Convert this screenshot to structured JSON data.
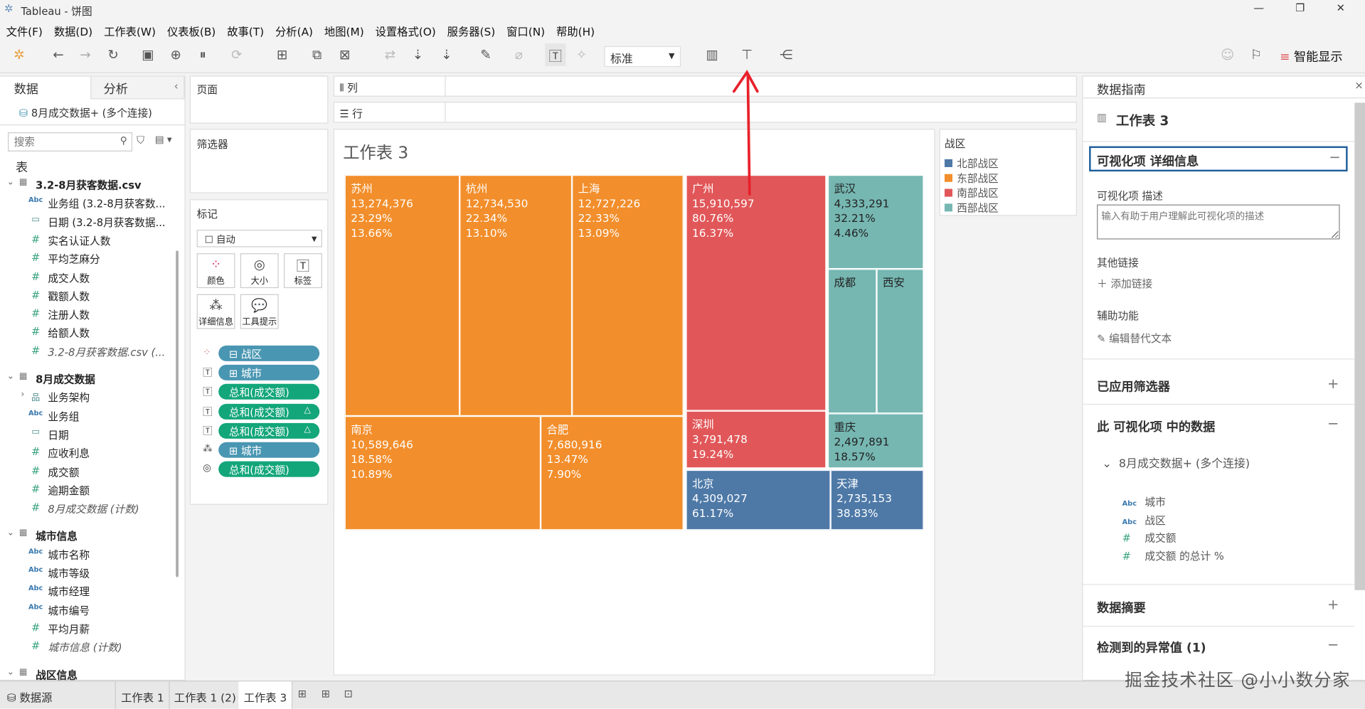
{
  "window": {
    "title": "Tableau - 饼图",
    "controls": [
      "—",
      "❐",
      "✕"
    ]
  },
  "menu": [
    "文件(F)",
    "数据(D)",
    "工作表(W)",
    "仪表板(B)",
    "故事(T)",
    "分析(A)",
    "地图(M)",
    "设置格式(O)",
    "服务器(S)",
    "窗口(N)",
    "帮助(H)"
  ],
  "toolbar": {
    "fit_select": "标准",
    "show_me": "智能显示"
  },
  "left": {
    "tabs": [
      "数据",
      "分析"
    ],
    "datasource": "8月成交数据+ (多个连接)",
    "search_placeholder": "搜索",
    "tables_label": "表",
    "tree": [
      {
        "t": "g",
        "label": "3.2-8月获客数据.csv"
      },
      {
        "t": "abc",
        "label": "业务组 (3.2-8月获客数..."
      },
      {
        "t": "date",
        "label": "日期 (3.2-8月获客数据..."
      },
      {
        "t": "num",
        "label": "实名认证人数"
      },
      {
        "t": "num",
        "label": "平均芝麻分"
      },
      {
        "t": "num",
        "label": "成交人数"
      },
      {
        "t": "num",
        "label": "戳额人数"
      },
      {
        "t": "num",
        "label": "注册人数"
      },
      {
        "t": "num",
        "label": "给额人数"
      },
      {
        "t": "numi",
        "label": "3.2-8月获客数据.csv (..."
      },
      {
        "t": "g",
        "label": "8月成交数据"
      },
      {
        "t": "hier",
        "label": "业务架构"
      },
      {
        "t": "abc",
        "label": "业务组"
      },
      {
        "t": "date",
        "label": "日期"
      },
      {
        "t": "num",
        "label": "应收利息"
      },
      {
        "t": "num",
        "label": "成交额"
      },
      {
        "t": "num",
        "label": "逾期金额"
      },
      {
        "t": "numi",
        "label": "8月成交数据 (计数)"
      },
      {
        "t": "g",
        "label": "城市信息"
      },
      {
        "t": "abc",
        "label": "城市名称"
      },
      {
        "t": "abc",
        "label": "城市等级"
      },
      {
        "t": "abc",
        "label": "城市经理"
      },
      {
        "t": "abc",
        "label": "城市编号"
      },
      {
        "t": "num",
        "label": "平均月薪"
      },
      {
        "t": "numi",
        "label": "城市信息 (计数)"
      },
      {
        "t": "g",
        "label": "战区信息"
      }
    ]
  },
  "shelves": {
    "pages": "页面",
    "filters": "筛选器",
    "marks": "标记",
    "mark_type": "自动",
    "columns": "列",
    "rows": "行",
    "mark_buttons": [
      "颜色",
      "大小",
      "标签",
      "详细信息",
      "工具提示"
    ],
    "pills": [
      {
        "icon": "color",
        "label": "⊟ 战区",
        "kind": "dim",
        "delta": ""
      },
      {
        "icon": "label",
        "label": "⊞ 城市",
        "kind": "dim",
        "delta": ""
      },
      {
        "icon": "label",
        "label": "总和(成交额)",
        "kind": "mea",
        "delta": ""
      },
      {
        "icon": "label",
        "label": "总和(成交额)",
        "kind": "mea",
        "delta": "△"
      },
      {
        "icon": "label",
        "label": "总和(成交额)",
        "kind": "mea",
        "delta": "△"
      },
      {
        "icon": "detail",
        "label": "⊞ 城市",
        "kind": "dim",
        "delta": ""
      },
      {
        "icon": "size",
        "label": "总和(成交额)",
        "kind": "mea",
        "delta": ""
      }
    ]
  },
  "viz": {
    "title": "工作表 3",
    "legend": {
      "title": "战区",
      "items": [
        {
          "label": "北部战区",
          "color": "#4e79a7"
        },
        {
          "label": "东部战区",
          "color": "#f28e2b"
        },
        {
          "label": "南部战区",
          "color": "#e15759"
        },
        {
          "label": "西部战区",
          "color": "#76b7b2"
        }
      ]
    },
    "cells": [
      {
        "city": "苏州",
        "value": "13,274,376",
        "pct1": "23.29%",
        "pct2": "13.66%",
        "region": "东部战区"
      },
      {
        "city": "杭州",
        "value": "12,734,530",
        "pct1": "22.34%",
        "pct2": "13.10%",
        "region": "东部战区"
      },
      {
        "city": "上海",
        "value": "12,727,226",
        "pct1": "22.33%",
        "pct2": "13.09%",
        "region": "东部战区"
      },
      {
        "city": "南京",
        "value": "10,589,646",
        "pct1": "18.58%",
        "pct2": "10.89%",
        "region": "东部战区"
      },
      {
        "city": "合肥",
        "value": "7,680,916",
        "pct1": "13.47%",
        "pct2": "7.90%",
        "region": "东部战区"
      },
      {
        "city": "广州",
        "value": "15,910,597",
        "pct1": "80.76%",
        "pct2": "16.37%",
        "region": "南部战区"
      },
      {
        "city": "深圳",
        "value": "3,791,478",
        "pct1": "19.24%",
        "pct2": "",
        "region": "南部战区"
      },
      {
        "city": "武汉",
        "value": "4,333,291",
        "pct1": "32.21%",
        "pct2": "4.46%",
        "region": "西部战区"
      },
      {
        "city": "成都",
        "value": "",
        "pct1": "",
        "pct2": "",
        "region": "西部战区"
      },
      {
        "city": "西安",
        "value": "",
        "pct1": "",
        "pct2": "",
        "region": "西部战区"
      },
      {
        "city": "重庆",
        "value": "2,497,891",
        "pct1": "18.57%",
        "pct2": "",
        "region": "西部战区"
      },
      {
        "city": "北京",
        "value": "4,309,027",
        "pct1": "61.17%",
        "pct2": "",
        "region": "北部战区"
      },
      {
        "city": "天津",
        "value": "2,735,153",
        "pct1": "38.83%",
        "pct2": "",
        "region": "北部战区"
      }
    ]
  },
  "guide": {
    "title": "数据指南",
    "sheet": "工作表 3",
    "details": "可视化项 详细信息",
    "desc_label": "可视化项 描述",
    "desc_placeholder": "输入有助于用户理解此可视化项的描述",
    "links_label": "其他链接",
    "add_link": "添加链接",
    "access_label": "辅助功能",
    "edit_alt": "编辑替代文本",
    "filters": "已应用筛选器",
    "data_in_viz": "此 可视化项 中的数据",
    "source": "8月成交数据+ (多个连接)",
    "fields": [
      {
        "t": "abc",
        "label": "城市"
      },
      {
        "t": "abc",
        "label": "战区"
      },
      {
        "t": "num",
        "label": "成交额"
      },
      {
        "t": "num",
        "label": "成交额 的总计 %"
      }
    ],
    "summary": "数据摘要",
    "outliers": "检测到的异常值 (1)"
  },
  "tabs": [
    "数据源",
    "工作表 1",
    "工作表 1 (2)",
    "工作表 3"
  ],
  "watermark": "掘金技术社区 @小小数分家"
}
